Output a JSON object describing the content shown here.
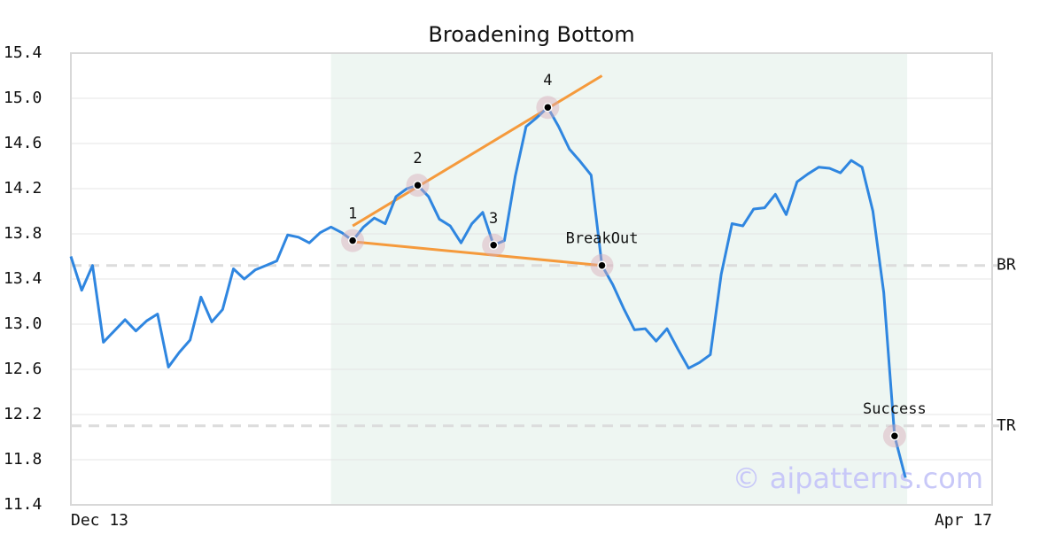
{
  "chart_data": {
    "type": "line",
    "title": "Broadening Bottom",
    "categories": [
      "Dec 13",
      null,
      null,
      null,
      null,
      null,
      null,
      null,
      null,
      null,
      null,
      null,
      null,
      null,
      null,
      null,
      null,
      null,
      null,
      null,
      null,
      null,
      null,
      null,
      null,
      null,
      null,
      null,
      null,
      null,
      null,
      null,
      null,
      null,
      null,
      null,
      null,
      null,
      null,
      null,
      null,
      null,
      null,
      null,
      null,
      null,
      null,
      null,
      null,
      null,
      null,
      null,
      null,
      null,
      null,
      null,
      null,
      null,
      null,
      null,
      null,
      null,
      null,
      null,
      null,
      null,
      null,
      null,
      null,
      null,
      null,
      null,
      null,
      null,
      null,
      null,
      null,
      null,
      null,
      null,
      null,
      null,
      null,
      null,
      null,
      "Apr 17"
    ],
    "series": [
      {
        "color": "#2f86e0",
        "values": [
          13.6,
          13.3,
          13.52,
          12.84,
          12.94,
          13.04,
          12.94,
          13.03,
          13.09,
          12.62,
          12.75,
          12.86,
          13.24,
          13.02,
          13.13,
          13.49,
          13.4,
          13.48,
          13.52,
          13.56,
          13.79,
          13.77,
          13.72,
          13.81,
          13.86,
          13.81,
          13.74,
          13.86,
          13.94,
          13.89,
          14.13,
          14.2,
          14.23,
          14.13,
          13.93,
          13.87,
          13.72,
          13.89,
          13.99,
          13.7,
          13.74,
          14.31,
          14.75,
          14.83,
          14.92,
          14.75,
          14.55,
          14.44,
          14.32,
          13.52,
          13.35,
          13.14,
          12.95,
          12.96,
          12.85,
          12.96,
          12.78,
          12.61,
          12.66,
          12.73,
          13.44,
          13.89,
          13.87,
          14.02,
          14.03,
          14.15,
          13.97,
          14.26,
          14.33,
          14.39,
          14.38,
          14.34,
          14.45,
          14.39,
          14.0,
          13.28,
          12.01,
          11.64,
          null,
          null,
          null,
          null,
          null,
          null,
          null,
          null
        ]
      }
    ],
    "ylim": [
      11.4,
      15.4
    ],
    "yticks": [
      11.4,
      11.8,
      12.2,
      12.6,
      {
        "value": 13.0,
        "label": "13.0"
      },
      13.4,
      13.8,
      14.2,
      14.6,
      {
        "value": 15.0,
        "label": "15.0"
      },
      15.4
    ],
    "grid": true,
    "highlight_range": [
      24,
      77
    ],
    "highlight_color": "#eef6f2",
    "points": [
      {
        "label": "1",
        "index": 26
      },
      {
        "label": "2",
        "index": 32
      },
      {
        "label": "3",
        "index": 39
      },
      {
        "label": "4",
        "index": 44
      },
      {
        "label": "BreakOut",
        "index": 49
      },
      {
        "label": "Success",
        "index": 76
      }
    ],
    "trend_lines": [
      {
        "color": "#f59a3c",
        "x": [
          26,
          49
        ],
        "y": [
          13.87,
          15.2
        ]
      },
      {
        "color": "#f59a3c",
        "x": [
          26,
          49
        ],
        "y": [
          13.73,
          13.52
        ]
      }
    ],
    "reference_lines": [
      {
        "label": "BR",
        "value": 13.52
      },
      {
        "label": "TR",
        "value": 12.1
      }
    ],
    "watermark": "© aipatterns.com"
  }
}
